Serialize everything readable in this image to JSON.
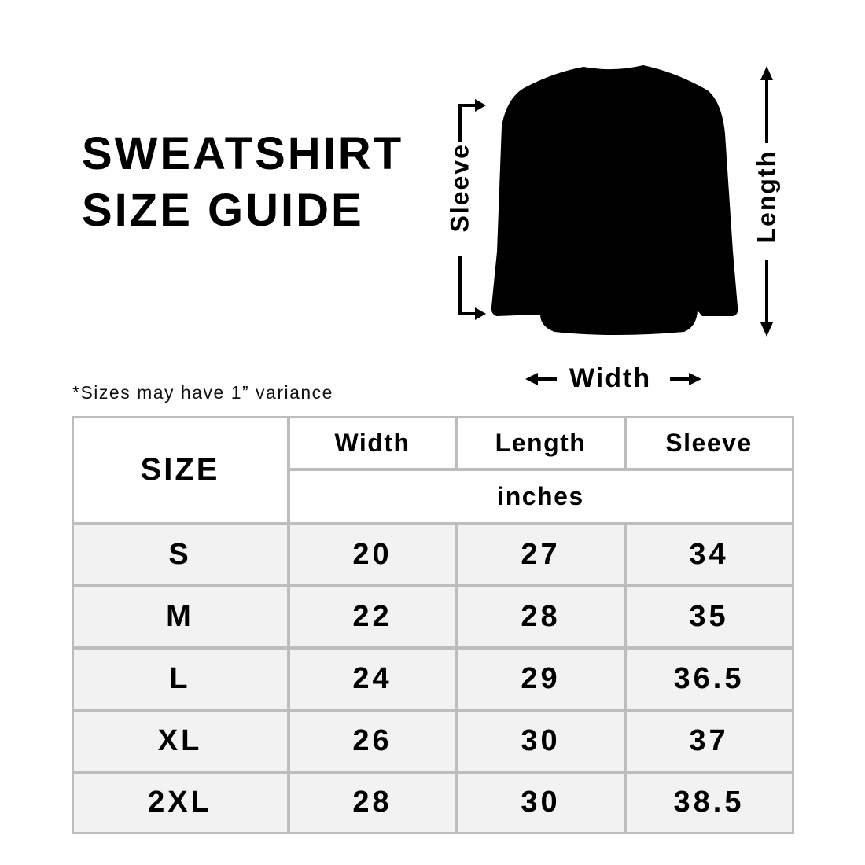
{
  "title": {
    "line1": "SWEATSHIRT",
    "line2": "SIZE GUIDE"
  },
  "diagram": {
    "sleeve_label": "Sleeve",
    "length_label": "Length",
    "width_label": "Width",
    "garment_color": "#000000"
  },
  "note": "*Sizes may have 1” variance",
  "table": {
    "size_header": "SIZE",
    "columns": [
      "Width",
      "Length",
      "Sleeve"
    ],
    "unit": "inches",
    "rows": [
      {
        "size": "S",
        "values": [
          "20",
          "27",
          "34"
        ]
      },
      {
        "size": "M",
        "values": [
          "22",
          "28",
          "35"
        ]
      },
      {
        "size": "L",
        "values": [
          "24",
          "29",
          "36.5"
        ]
      },
      {
        "size": "XL",
        "values": [
          "26",
          "30",
          "37"
        ]
      },
      {
        "size": "2XL",
        "values": [
          "28",
          "30",
          "38.5"
        ]
      }
    ],
    "border_color": "#bdbdbd",
    "row_bg": "#f2f2f2"
  }
}
